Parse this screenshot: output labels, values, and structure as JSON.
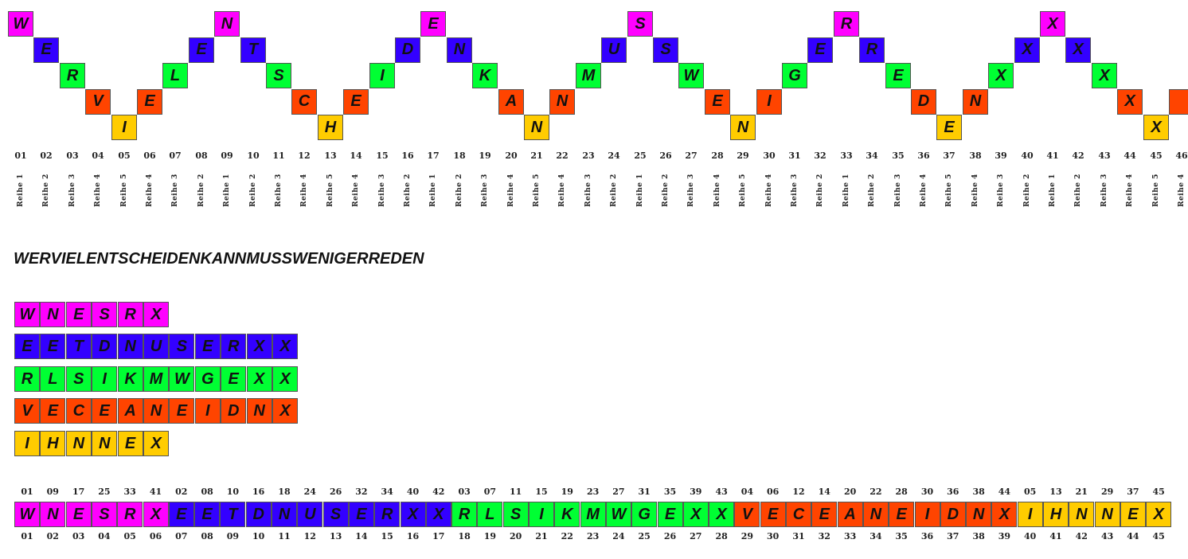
{
  "colors": {
    "row1": "#ff00ff",
    "row2": "#3300ff",
    "row3": "#00ff33",
    "row4": "#ff4400",
    "row5": "#ffcc00"
  },
  "zigzag": {
    "letters": [
      "W",
      "E",
      "R",
      "V",
      "I",
      "E",
      "L",
      "E",
      "N",
      "T",
      "S",
      "C",
      "H",
      "E",
      "I",
      "D",
      "E",
      "N",
      "K",
      "A",
      "N",
      "N",
      "M",
      "U",
      "S",
      "S",
      "W",
      "E",
      "N",
      "I",
      "G",
      "E",
      "R",
      "R",
      "E",
      "D",
      "E",
      "N",
      "X",
      "X",
      "X",
      "X",
      "X",
      "X",
      "X",
      ""
    ],
    "rows": [
      1,
      2,
      3,
      4,
      5,
      4,
      3,
      2,
      1,
      2,
      3,
      4,
      5,
      4,
      3,
      2,
      1,
      2,
      3,
      4,
      5,
      4,
      3,
      2,
      1,
      2,
      3,
      4,
      5,
      4,
      3,
      2,
      1,
      2,
      3,
      4,
      5,
      4,
      3,
      2,
      1,
      2,
      3,
      4,
      5,
      4
    ],
    "numbers": [
      "01",
      "02",
      "03",
      "04",
      "05",
      "06",
      "07",
      "08",
      "09",
      "10",
      "11",
      "12",
      "13",
      "14",
      "15",
      "16",
      "17",
      "18",
      "19",
      "20",
      "21",
      "22",
      "23",
      "24",
      "25",
      "26",
      "27",
      "28",
      "29",
      "30",
      "31",
      "32",
      "33",
      "34",
      "35",
      "36",
      "37",
      "38",
      "39",
      "40",
      "41",
      "42",
      "43",
      "44",
      "45",
      "46"
    ],
    "row_labels": [
      "Reihe 1",
      "Reihe 2",
      "Reihe 3",
      "Reihe 4",
      "Reihe 5"
    ]
  },
  "plaintext": "WERVIELENTSCHEIDENKANNMUSSWENIGERREDEN",
  "rails": [
    [
      "W",
      "N",
      "E",
      "S",
      "R",
      "X"
    ],
    [
      "E",
      "E",
      "T",
      "D",
      "N",
      "U",
      "S",
      "E",
      "R",
      "X",
      "X"
    ],
    [
      "R",
      "L",
      "S",
      "I",
      "K",
      "M",
      "W",
      "G",
      "E",
      "X",
      "X"
    ],
    [
      "V",
      "E",
      "C",
      "E",
      "A",
      "N",
      "E",
      "I",
      "D",
      "N",
      "X"
    ],
    [
      "I",
      "H",
      "N",
      "N",
      "E",
      "X"
    ]
  ],
  "ciphertext": {
    "letters": [
      "W",
      "N",
      "E",
      "S",
      "R",
      "X",
      "E",
      "E",
      "T",
      "D",
      "N",
      "U",
      "S",
      "E",
      "R",
      "X",
      "X",
      "R",
      "L",
      "S",
      "I",
      "K",
      "M",
      "W",
      "G",
      "E",
      "X",
      "X",
      "V",
      "E",
      "C",
      "E",
      "A",
      "N",
      "E",
      "I",
      "D",
      "N",
      "X",
      "I",
      "H",
      "N",
      "N",
      "E",
      "X"
    ],
    "rows": [
      1,
      1,
      1,
      1,
      1,
      1,
      2,
      2,
      2,
      2,
      2,
      2,
      2,
      2,
      2,
      2,
      2,
      3,
      3,
      3,
      3,
      3,
      3,
      3,
      3,
      3,
      3,
      3,
      4,
      4,
      4,
      4,
      4,
      4,
      4,
      4,
      4,
      4,
      4,
      5,
      5,
      5,
      5,
      5,
      5
    ],
    "source_positions": [
      "01",
      "09",
      "17",
      "25",
      "33",
      "41",
      "02",
      "08",
      "10",
      "16",
      "18",
      "24",
      "26",
      "32",
      "34",
      "40",
      "42",
      "03",
      "07",
      "11",
      "15",
      "19",
      "23",
      "27",
      "31",
      "35",
      "39",
      "43",
      "04",
      "06",
      "12",
      "14",
      "20",
      "22",
      "28",
      "30",
      "36",
      "38",
      "44",
      "05",
      "13",
      "21",
      "29",
      "37",
      "45"
    ],
    "output_positions": [
      "01",
      "02",
      "03",
      "04",
      "05",
      "06",
      "07",
      "08",
      "09",
      "10",
      "11",
      "12",
      "13",
      "14",
      "15",
      "16",
      "17",
      "18",
      "19",
      "20",
      "21",
      "22",
      "23",
      "24",
      "25",
      "26",
      "27",
      "28",
      "29",
      "30",
      "31",
      "32",
      "33",
      "34",
      "35",
      "36",
      "37",
      "38",
      "39",
      "40",
      "41",
      "42",
      "43",
      "44",
      "45"
    ]
  }
}
